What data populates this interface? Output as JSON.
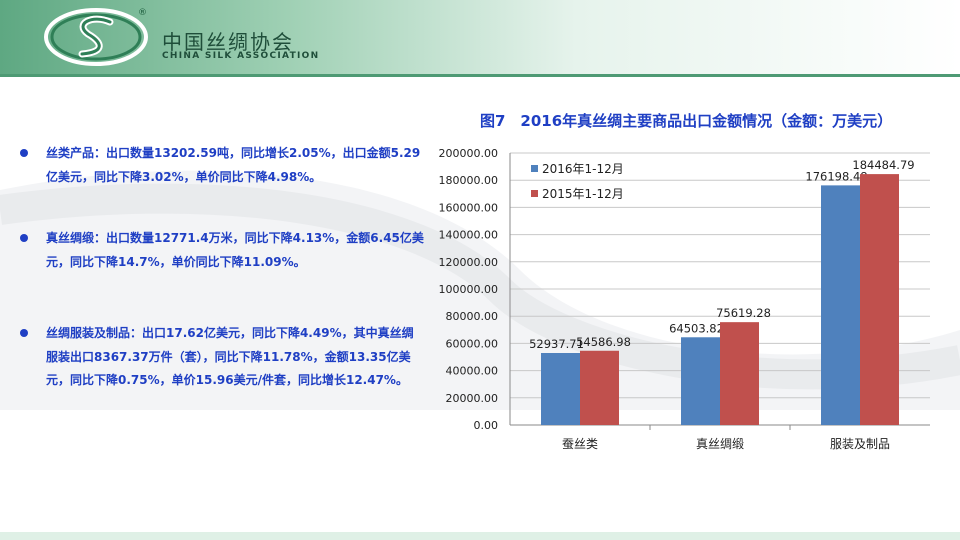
{
  "header": {
    "org_name_cn": "中国丝绸协会",
    "org_name_en": "CHINA SILK ASSOCIATION",
    "registered_mark": "®"
  },
  "bullets": [
    "丝类产品：出口数量13202.59吨，同比增长2.05%，出口金额5.29亿美元，同比下降3.02%，单价同比下降4.98%。",
    "真丝绸缎：出口数量12771.4万米，同比下降4.13%，金额6.45亿美元，同比下降14.7%，单价同比下降11.09%。",
    "丝绸服装及制品：出口17.62亿美元，同比下降4.49%，其中真丝绸服装出口8367.37万件（套），同比下降11.78%，金额13.35亿美元，同比下降0.75%，单价15.96美元/件套，同比增长12.47%。"
  ],
  "colors": {
    "series_2016": "#4f81bd",
    "series_2015": "#c0504d",
    "text_blue": "#1f3fc4",
    "header_green": "#4e9a74"
  },
  "chart_data": {
    "type": "bar",
    "title": "图7　2016年真丝绸主要商品出口金额情况（金额：万美元）",
    "categories": [
      "蚕丝类",
      "真丝绸缎",
      "服装及制品"
    ],
    "series": [
      {
        "name": "2016年1-12月",
        "values": [
          52937.71,
          64503.82,
          176198.48
        ]
      },
      {
        "name": "2015年1-12月",
        "values": [
          54586.98,
          75619.28,
          184484.79
        ]
      }
    ],
    "data_labels": [
      [
        "52937.71",
        "64503.82",
        "176198.48"
      ],
      [
        "54586.98",
        "75619.28",
        "184484.79"
      ]
    ],
    "y_ticks": [
      "0.00",
      "20000.00",
      "40000.00",
      "60000.00",
      "80000.00",
      "100000.00",
      "120000.00",
      "140000.00",
      "160000.00",
      "180000.00",
      "200000.00"
    ],
    "ylim": [
      0,
      200000
    ],
    "legend_position": "top-left",
    "grid": true
  }
}
